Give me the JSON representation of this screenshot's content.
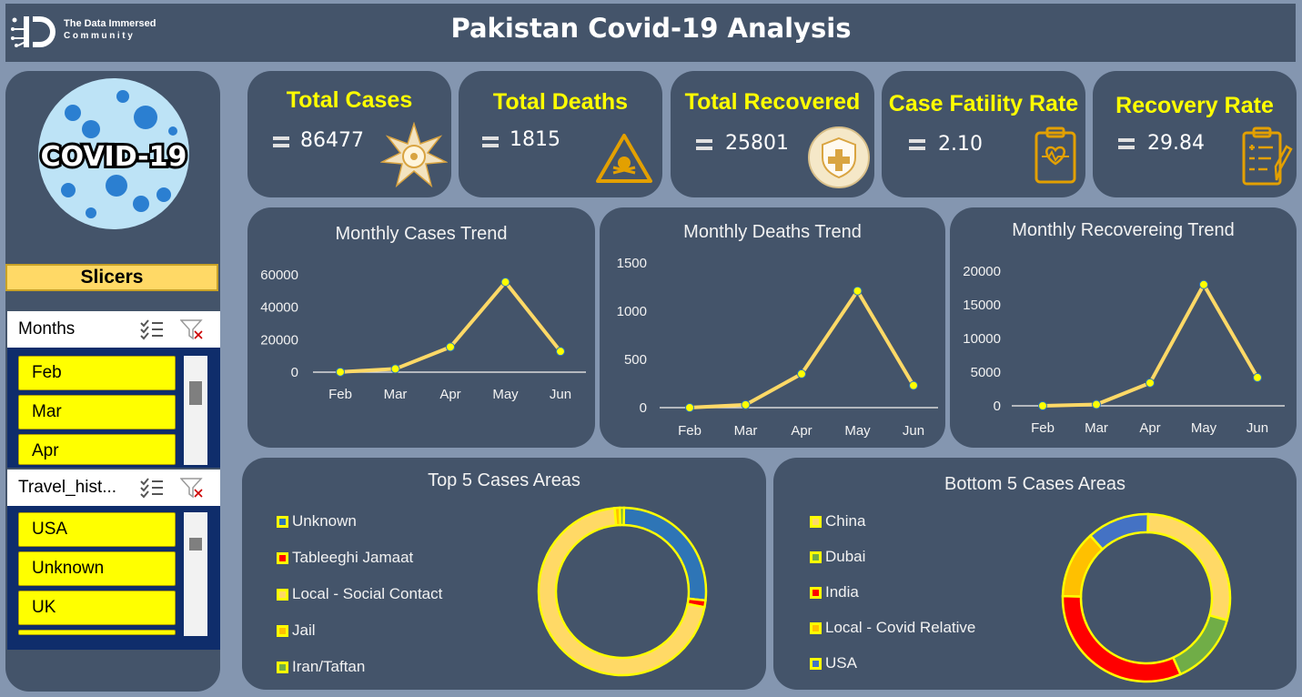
{
  "header": {
    "title": "Pakistan Covid-19 Analysis",
    "brand_line1": "The Data Immersed",
    "brand_line2": "Community",
    "logo_letters": "iD"
  },
  "sidebar": {
    "badge_text": "COVID-19",
    "slicers_title": "Slicers",
    "months_slicer": {
      "label": "Months",
      "items": [
        "Feb",
        "Mar",
        "Apr"
      ]
    },
    "travel_slicer": {
      "label": "Travel_hist...",
      "items": [
        "USA",
        "Unknown",
        "UK"
      ]
    },
    "icons": {
      "multi_select": "multi-select-icon",
      "clear_filter": "clear-filter-icon"
    }
  },
  "kpis": [
    {
      "label": "Total Cases",
      "value": "86477",
      "icon": "virus-emblem-icon"
    },
    {
      "label": "Total Deaths",
      "value": "1815",
      "icon": "skull-warning-icon"
    },
    {
      "label": "Total Recovered",
      "value": "25801",
      "icon": "medical-shield-icon"
    },
    {
      "label": "Case Fatility Rate",
      "value": "2.10",
      "icon": "clipboard-heart-icon"
    },
    {
      "label": "Recovery Rate",
      "value": "29.84",
      "icon": "clipboard-checklist-icon"
    }
  ],
  "colors": {
    "panel": "#44546a",
    "background": "#8496b0",
    "line": "#ffd966",
    "marker": "#ffff00",
    "accent_yellow": "#ffff00"
  },
  "chart_data": [
    {
      "type": "line",
      "title": "Monthly Cases Trend",
      "categories": [
        "Feb",
        "Mar",
        "Apr",
        "May",
        "Jun"
      ],
      "values": [
        100,
        2000,
        15500,
        55500,
        12800
      ],
      "ylim": [
        0,
        60000
      ],
      "yticks": [
        0,
        20000,
        40000,
        60000
      ],
      "grid": false
    },
    {
      "type": "line",
      "title": "Monthly Deaths Trend",
      "categories": [
        "Feb",
        "Mar",
        "Apr",
        "May",
        "Jun"
      ],
      "values": [
        0,
        30,
        350,
        1210,
        230
      ],
      "ylim": [
        0,
        1500
      ],
      "yticks": [
        0,
        500,
        1000,
        1500
      ],
      "grid": false
    },
    {
      "type": "line",
      "title": "Monthly Recovereing Trend",
      "categories": [
        "Feb",
        "Mar",
        "Apr",
        "May",
        "Jun"
      ],
      "values": [
        0,
        200,
        3400,
        18000,
        4200
      ],
      "ylim": [
        0,
        20000
      ],
      "yticks": [
        0,
        5000,
        10000,
        15000,
        20000
      ],
      "grid": false
    },
    {
      "type": "pie",
      "title": "Top 5 Cases Areas",
      "legend_position": "left",
      "labels": [
        "Unknown",
        "Tableeghi Jamaat",
        "Local - Social Contact",
        "Jail",
        "Iran/Taftan"
      ],
      "values": [
        26.4,
        1.3,
        70.5,
        1.0,
        0.8
      ],
      "colors": [
        "#2e75b6",
        "#ff0000",
        "#ffd966",
        "#ffc000",
        "#70ad47"
      ]
    },
    {
      "type": "pie",
      "title": "Bottom 5 Cases Areas",
      "legend_position": "left",
      "labels": [
        "China",
        "Dubai",
        "India",
        "Local - Covid Relative",
        "USA"
      ],
      "values": [
        29,
        14,
        32,
        13,
        12
      ],
      "colors": [
        "#ffd966",
        "#70ad47",
        "#ff0000",
        "#ffc000",
        "#4472c4"
      ]
    }
  ]
}
